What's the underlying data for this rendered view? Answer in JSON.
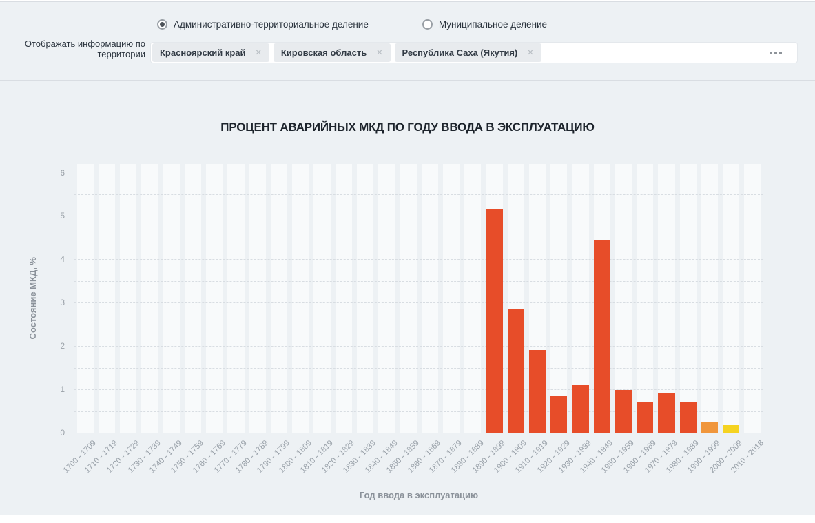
{
  "filter": {
    "radio_options": [
      {
        "label": "Административно-территориальное деление",
        "selected": true
      },
      {
        "label": "Муниципальное деление",
        "selected": false
      }
    ],
    "territory_label": "Отображать информацию по территории",
    "territories": [
      "Красноярский край",
      "Кировская область",
      "Республика Саха (Якутия)"
    ],
    "remove_chip_icon": "×",
    "more_button_icon": "ellipsis-icon"
  },
  "chart_data": {
    "type": "bar",
    "title": "ПРОЦЕНТ АВАРИЙНЫХ МКД ПО ГОДУ ВВОДА В ЭКСПЛУАТАЦИЮ",
    "xlabel": "Год ввода в эксплуатацию",
    "ylabel": "Состояние МКД, %",
    "ylim": [
      0,
      6.2
    ],
    "yticks": [
      0,
      1,
      2,
      3,
      4,
      5,
      6
    ],
    "grid_step": 0.5,
    "grid": true,
    "legend": false,
    "categories": [
      "1700 - 1709",
      "1710 - 1719",
      "1720 - 1729",
      "1730 - 1739",
      "1740 - 1749",
      "1750 - 1759",
      "1760 - 1769",
      "1770 - 1779",
      "1780 - 1789",
      "1790 - 1799",
      "1800 - 1809",
      "1810 - 1819",
      "1820 - 1829",
      "1830 - 1839",
      "1840 - 1849",
      "1850 - 1859",
      "1860 - 1869",
      "1870 - 1879",
      "1880 - 1889",
      "1890 - 1899",
      "1900 - 1909",
      "1910 - 1919",
      "1920 - 1929",
      "1930 - 1939",
      "1940 - 1949",
      "1950 - 1959",
      "1960 - 1969",
      "1970 - 1979",
      "1980 - 1989",
      "1990 - 1999",
      "2000 - 2009",
      "2010 - 2018"
    ],
    "values": [
      0,
      0,
      0,
      0,
      0,
      0,
      0,
      0,
      0,
      0,
      0,
      0,
      0,
      0,
      0,
      0,
      0,
      0,
      0,
      5.16,
      2.86,
      1.9,
      0.86,
      1.09,
      4.45,
      0.98,
      0.7,
      0.92,
      0.71,
      0.24,
      0.17,
      0
    ],
    "bar_colors": [
      "#e74d29",
      "#e74d29",
      "#e74d29",
      "#e74d29",
      "#e74d29",
      "#e74d29",
      "#e74d29",
      "#e74d29",
      "#e74d29",
      "#e74d29",
      "#e74d29",
      "#e74d29",
      "#e74d29",
      "#e74d29",
      "#e74d29",
      "#e74d29",
      "#e74d29",
      "#e74d29",
      "#e74d29",
      "#e74d29",
      "#e74d29",
      "#e74d29",
      "#e74d29",
      "#e74d29",
      "#e74d29",
      "#e74d29",
      "#e74d29",
      "#e74d29",
      "#e74d29",
      "#f0963c",
      "#f5d321",
      "#e74d29"
    ]
  },
  "colors": {
    "panel_bg": "#edf1f4",
    "column_band": "#f8fafb",
    "gridline": "#d8dde2",
    "default_bar": "#e74d29",
    "highlight_orange": "#f0963c",
    "highlight_yellow": "#f5d321"
  }
}
